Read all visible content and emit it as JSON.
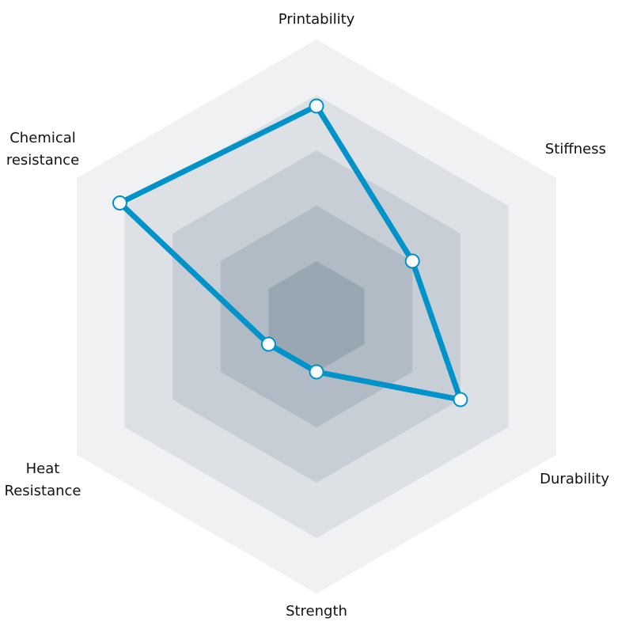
{
  "chart_data": {
    "type": "radar",
    "title": "",
    "axes": [
      {
        "key": "printability",
        "label_lines": [
          "Printability"
        ]
      },
      {
        "key": "stiffness",
        "label_lines": [
          "Stiffness"
        ]
      },
      {
        "key": "durability",
        "label_lines": [
          "Durability"
        ]
      },
      {
        "key": "strength",
        "label_lines": [
          "Strength"
        ]
      },
      {
        "key": "heat_resistance",
        "label_lines": [
          "Heat",
          "Resistance"
        ]
      },
      {
        "key": "chemical_resistance",
        "label_lines": [
          "Chemical",
          "resistance"
        ]
      }
    ],
    "range": [
      0,
      5
    ],
    "ring_levels": [
      1,
      2,
      3,
      4,
      5
    ],
    "series": [
      {
        "name": "",
        "values": [
          3.8,
          2.0,
          3.0,
          1.0,
          1.0,
          4.1
        ],
        "color": "#0093c9",
        "marker_fill": "#ffffff",
        "marker_stroke": "#0093c9"
      }
    ],
    "ring_colors": [
      "#f0f1f3",
      "#dde1e6",
      "#c7ced6",
      "#b0bbc5",
      "#99a7b3"
    ],
    "grid": true,
    "legend": "none"
  }
}
